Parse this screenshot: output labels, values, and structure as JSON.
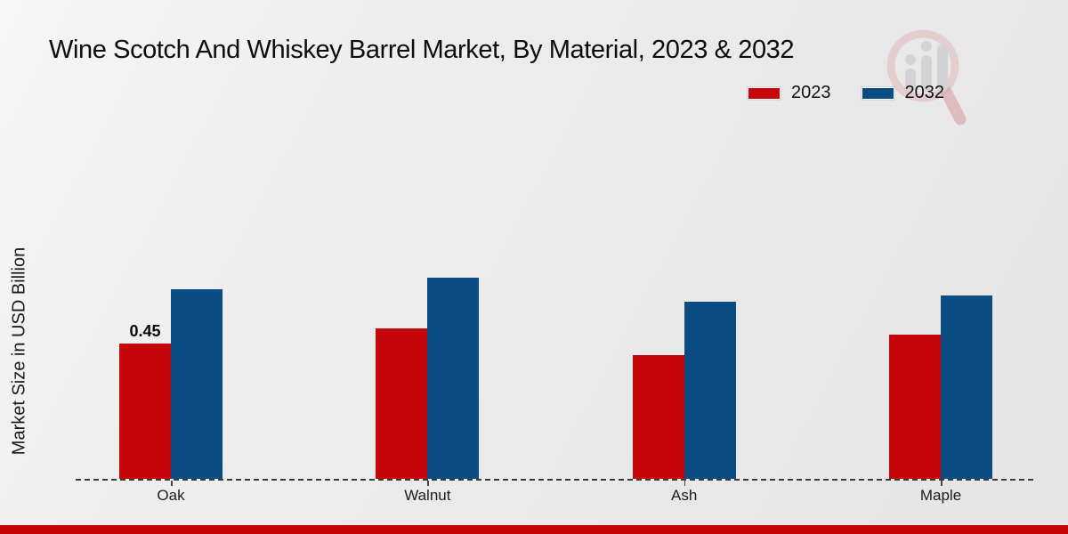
{
  "header": {
    "title": "Wine Scotch And Whiskey Barrel Market, By Material, 2023 & 2032",
    "watermark_icon": "magnifier-bar-chart-logo"
  },
  "legend": {
    "items": [
      {
        "label": "2023",
        "color": "#c5060a"
      },
      {
        "label": "2032",
        "color": "#0b4c85"
      }
    ]
  },
  "footer": {
    "bar_color": "#c40507"
  },
  "chart_data": {
    "type": "bar",
    "title": "Wine Scotch And Whiskey Barrel Market, By Material, 2023 & 2032",
    "xlabel": "",
    "ylabel": "Market Size in USD Billion",
    "categories": [
      "Oak",
      "Walnut",
      "Ash",
      "Maple"
    ],
    "series": [
      {
        "name": "2023",
        "color": "#c5060a",
        "values": [
          0.45,
          0.5,
          0.41,
          0.48
        ],
        "labels": [
          "0.45",
          null,
          null,
          null
        ]
      },
      {
        "name": "2032",
        "color": "#0b4c85",
        "values": [
          0.63,
          0.67,
          0.59,
          0.61
        ],
        "labels": [
          null,
          null,
          null,
          null
        ]
      }
    ],
    "ylim": [
      0,
      0.75
    ],
    "grid": false,
    "axis_ticks_labeled": false,
    "legend_position": "top-right",
    "baseline_style": "dashed"
  }
}
